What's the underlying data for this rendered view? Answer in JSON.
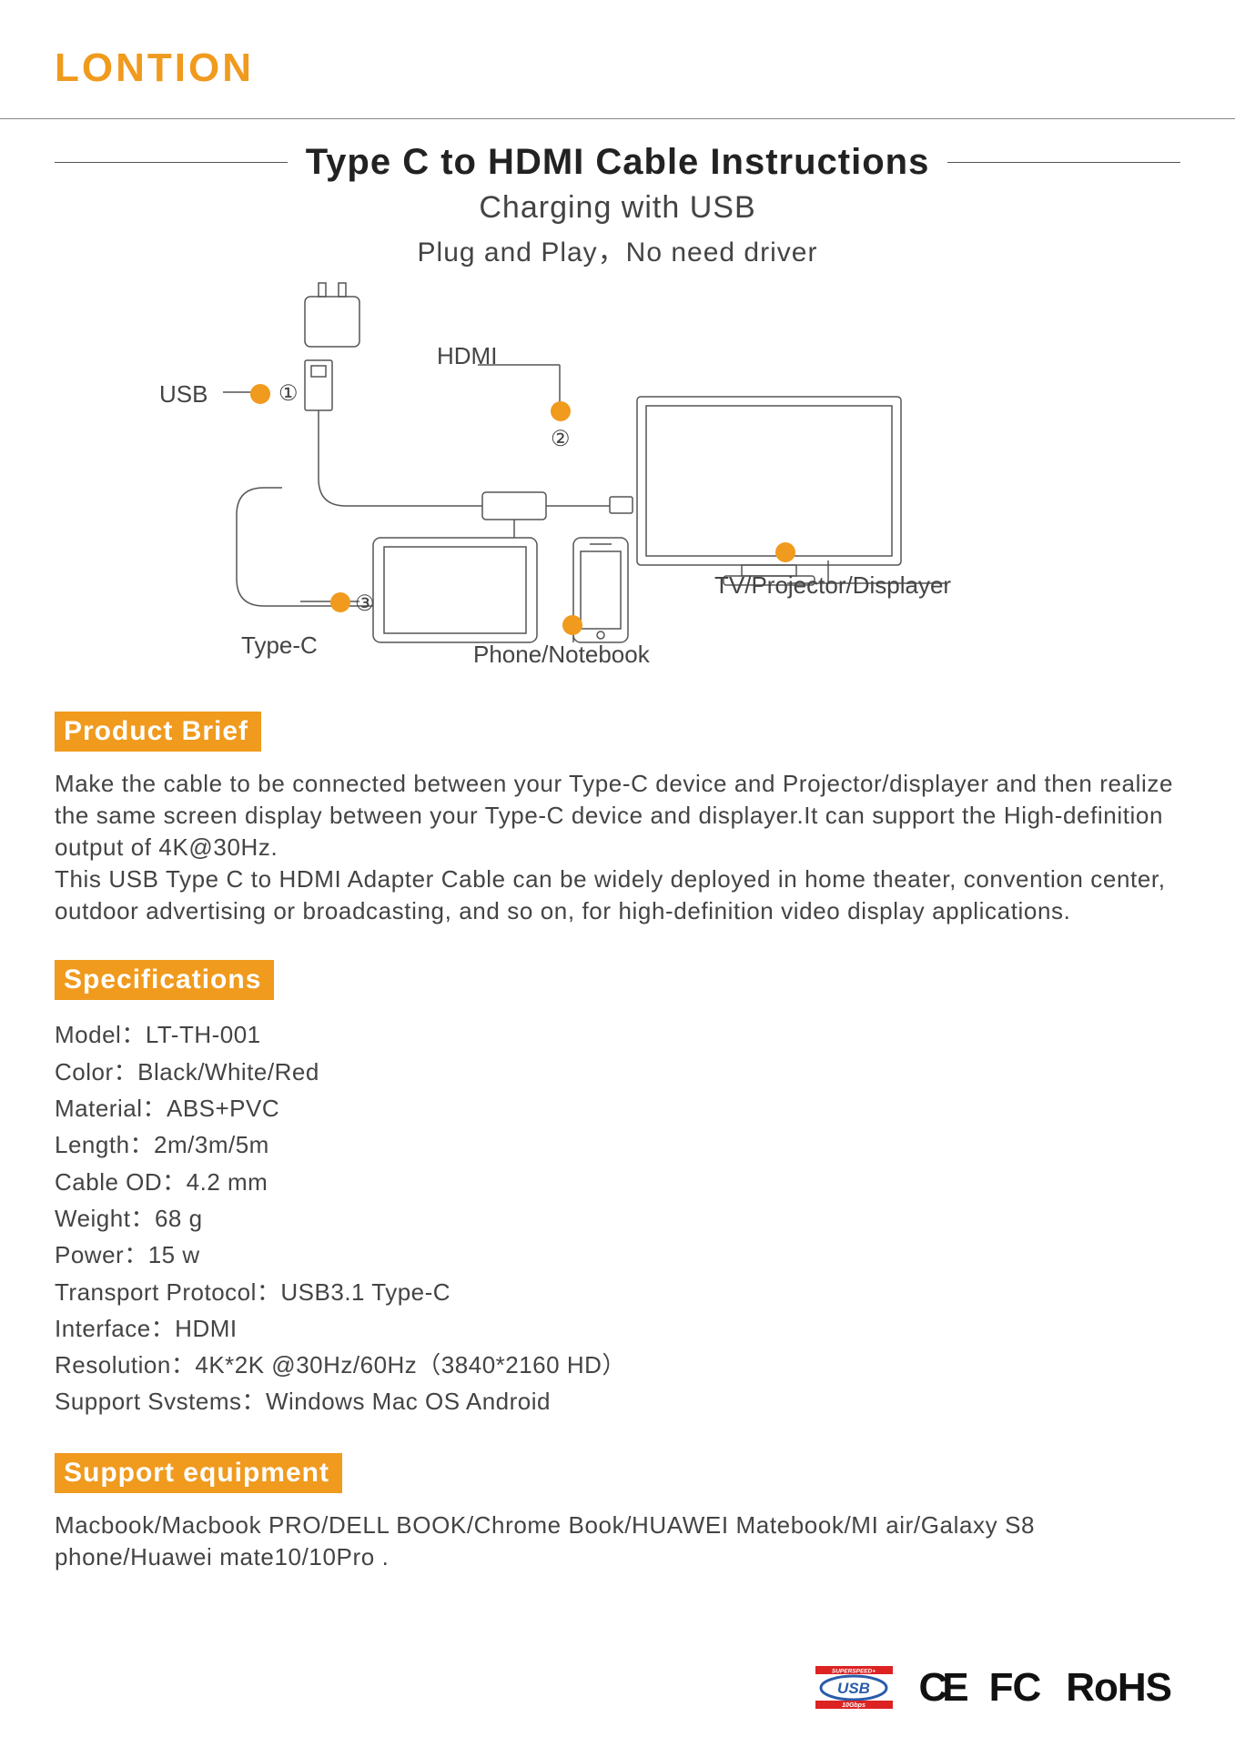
{
  "brand": "LONTION",
  "colors": {
    "accent": "#f09a1e",
    "text": "#444444",
    "heading": "#222222",
    "line": "#666666",
    "bg": "#ffffff"
  },
  "header": {
    "title": "Type C to HDMI Cable Instructions",
    "subtitle1": "Charging with USB",
    "subtitle2": "Plug and Play，No need driver"
  },
  "diagram": {
    "labels": {
      "usb": "USB",
      "hdmi": "HDMI",
      "typec": "Type-C",
      "phone": "Phone/Notebook",
      "tv": "TV/Projector/Displayer"
    },
    "callouts": [
      "①",
      "②",
      "③"
    ]
  },
  "sections": {
    "brief": {
      "heading": "Product Brief",
      "text": "Make the cable to be connected between your Type-C device and Projector/displayer and then realize the same screen display between your Type-C device and displayer.It can support the High-definition output of 4K@30Hz.\nThis USB Type C to HDMI Adapter Cable can be widely deployed in home theater, convention center, outdoor advertising or broadcasting, and so on, for high-definition video display applications."
    },
    "specs": {
      "heading": "Specifications",
      "items": [
        "Model：LT-TH-001",
        "Color：Black/White/Red",
        "Material：ABS+PVC",
        "Length：2m/3m/5m",
        "Cable OD：4.2 mm",
        "Weight：68 g",
        "Power：15 w",
        "Transport Protocol：USB3.1 Type-C",
        "Interface：HDMI",
        "Resolution：4K*2K @30Hz/60Hz（3840*2160 HD）",
        "Support Svstems：Windows  Mac OS  Android"
      ]
    },
    "support": {
      "heading": "Support equipment",
      "text": "Macbook/Macbook PRO/DELL BOOK/Chrome Book/HUAWEI Matebook/MI air/Galaxy S8 phone/Huawei mate10/10Pro ."
    }
  },
  "certs": {
    "usb_top": "SUPERSPEED+",
    "usb_mid": "USB",
    "usb_bot": "10Gbps",
    "ce": "CE",
    "fcc": "FC",
    "rohs": "RoHS"
  }
}
